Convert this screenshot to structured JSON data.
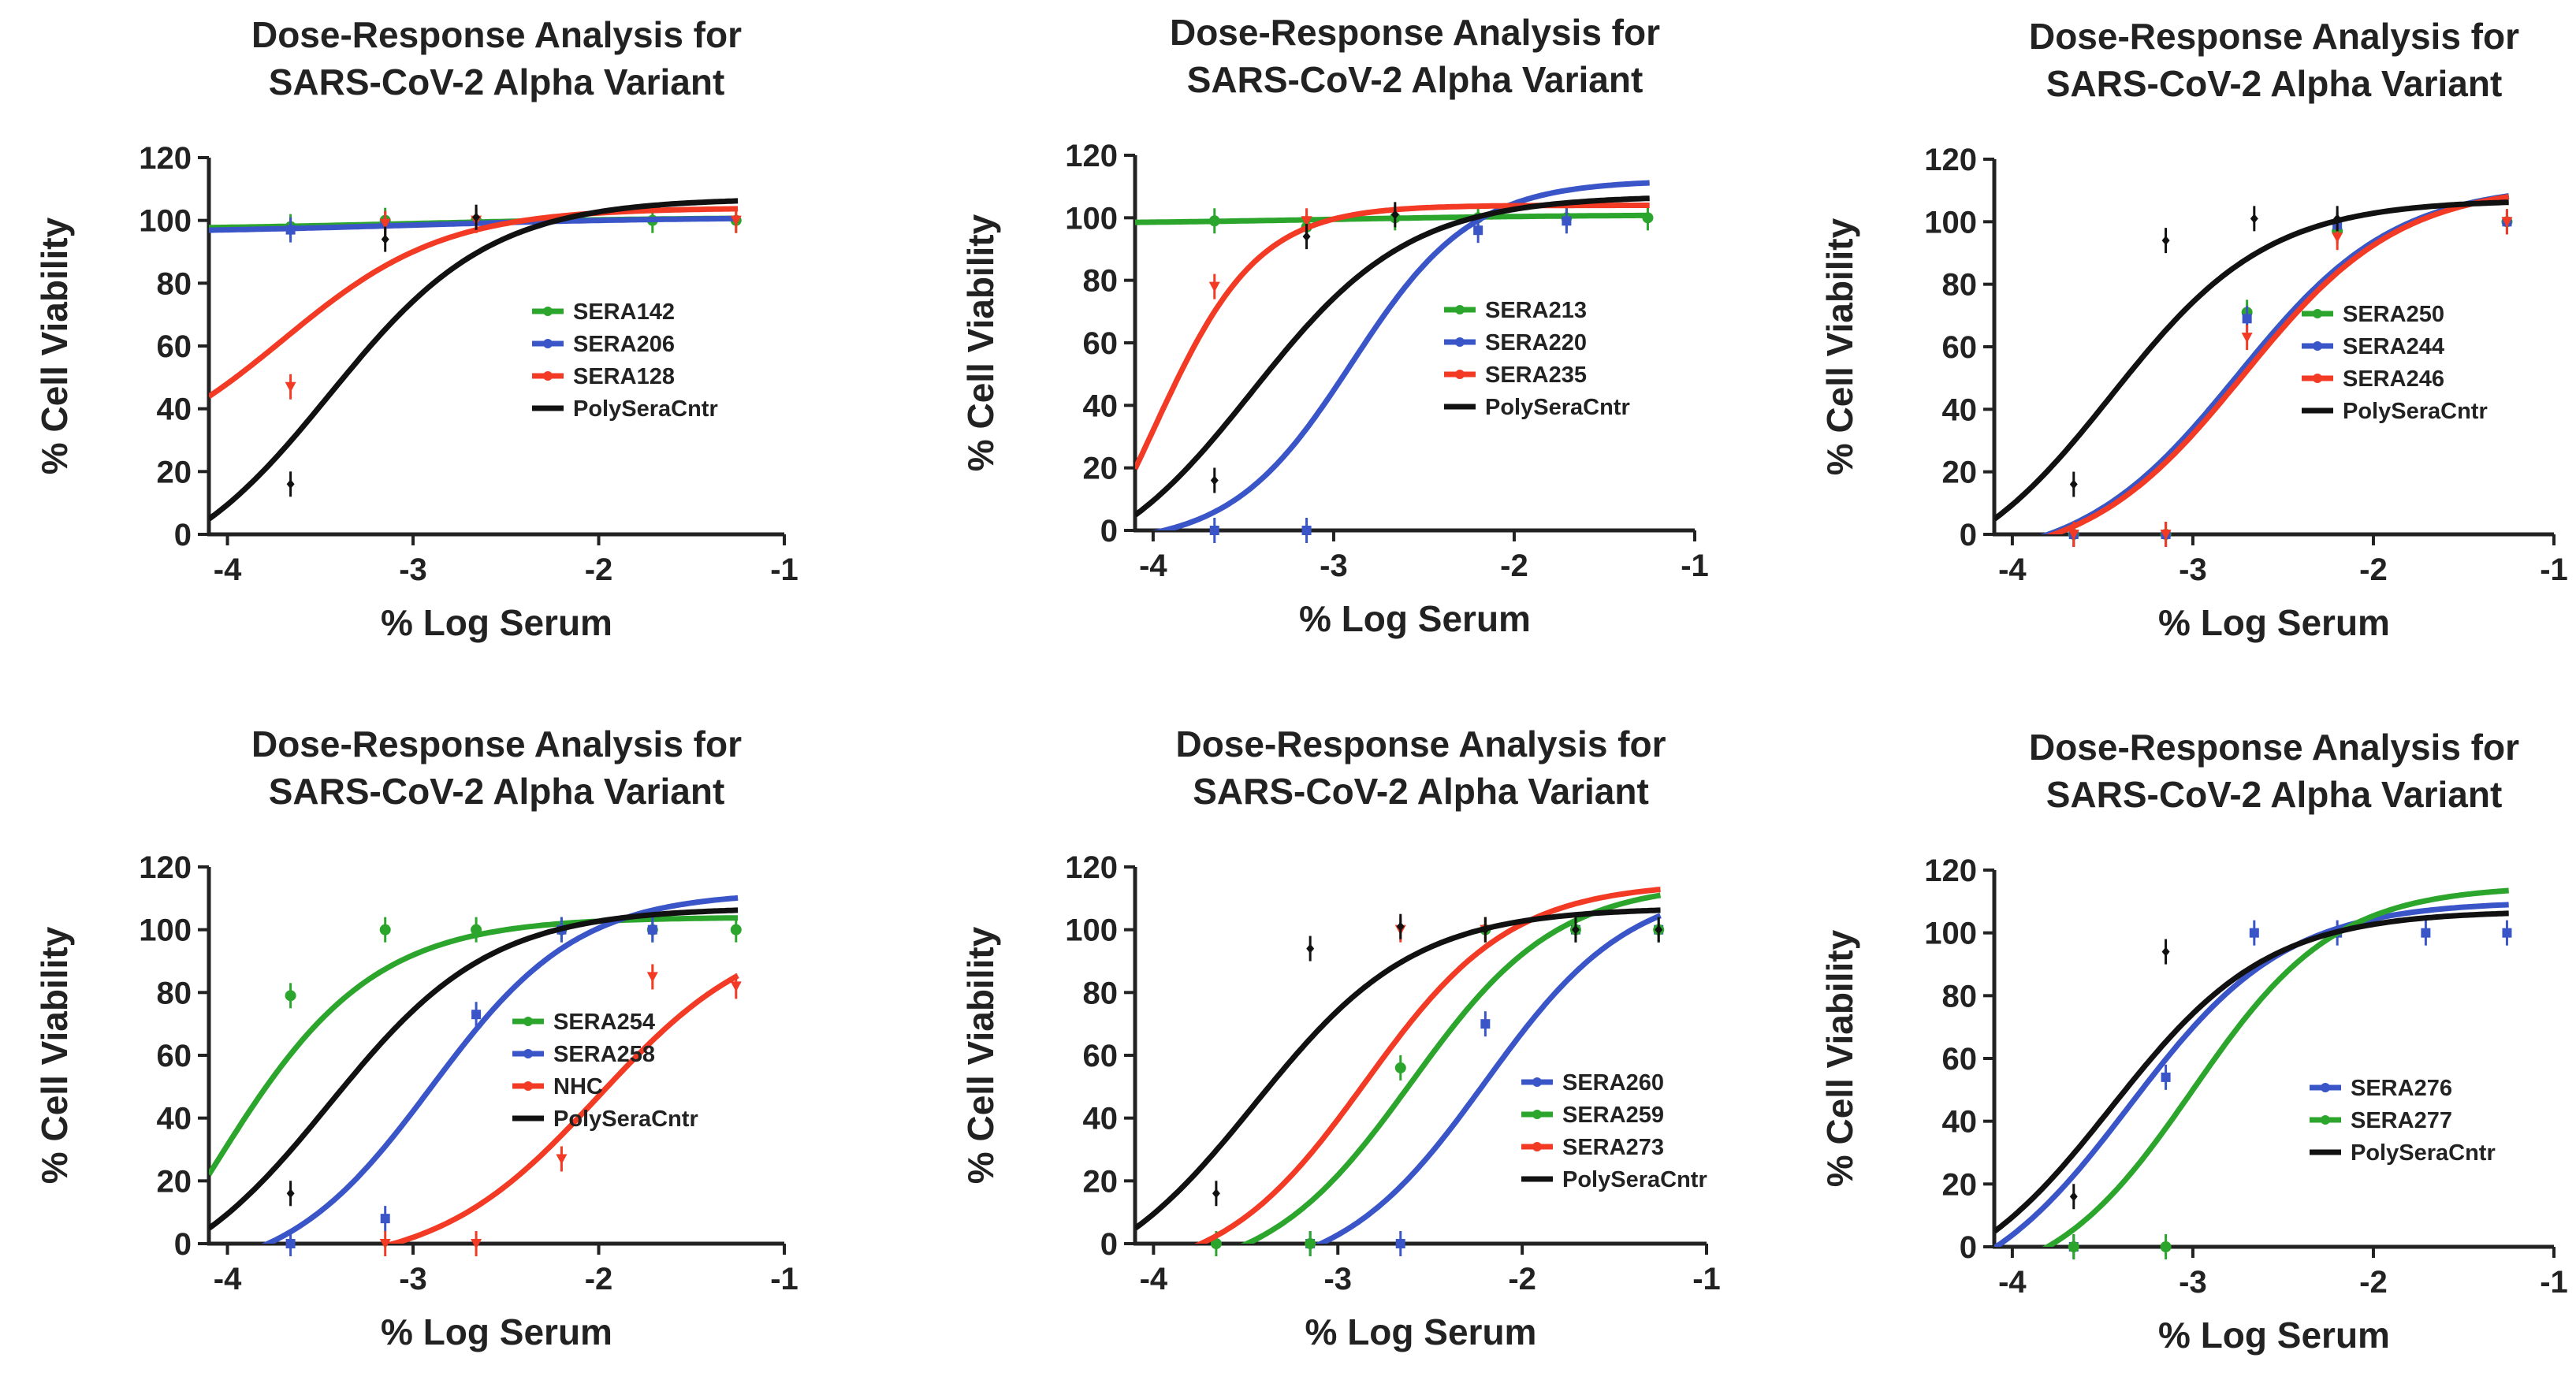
{
  "figure": {
    "colors": {
      "green": "#2ca52c",
      "blue": "#3a55c8",
      "red": "#f23a24",
      "black": "#111111"
    },
    "panels_layout": "2 rows x 3 columns"
  },
  "chart_data": [
    {
      "type": "line",
      "title": [
        "Dose-Response Analysis for",
        "SARS-CoV-2 Alpha Variant"
      ],
      "xlabel": "% Log Serum",
      "ylabel": "% Cell Viability",
      "xlim": [
        -4.1,
        -1
      ],
      "ylim": [
        0,
        120
      ],
      "xticks": [
        -4,
        -3,
        -2,
        -1
      ],
      "yticks": [
        0,
        20,
        40,
        60,
        80,
        100,
        120
      ],
      "legend_position": "center-right",
      "series": [
        {
          "name": "SERA142",
          "color": "#2ca52c",
          "marker": "circle",
          "bottom": 97,
          "top": 101,
          "ec50": -3.0,
          "hill": 0.6,
          "x": [
            -3.66,
            -3.15,
            -2.66,
            -1.71,
            -1.26
          ],
          "y": [
            98,
            100,
            100,
            100,
            100
          ]
        },
        {
          "name": "SERA206",
          "color": "#3a55c8",
          "marker": "square",
          "bottom": 96,
          "top": 101,
          "ec50": -3.0,
          "hill": 0.6,
          "x": [
            -3.66,
            -3.15
          ],
          "y": [
            97,
            99
          ]
        },
        {
          "name": "SERA128",
          "color": "#f23a24",
          "marker": "triangle",
          "bottom": 20,
          "top": 104,
          "ec50": -3.7,
          "hill": 1.0,
          "x": [
            -3.66,
            -3.15,
            -2.66,
            -1.26
          ],
          "y": [
            47,
            99,
            100,
            100
          ]
        },
        {
          "name": "PolySeraCntr",
          "color": "#111111",
          "marker": "diamond",
          "bottom": -18,
          "top": 107,
          "ec50": -3.45,
          "hill": 1.0,
          "x": [
            -3.66,
            -3.15,
            -2.66
          ],
          "y": [
            16,
            94,
            101
          ]
        }
      ]
    },
    {
      "type": "line",
      "title": [
        "Dose-Response Analysis for",
        "SARS-CoV-2 Alpha Variant"
      ],
      "xlabel": "% Log Serum",
      "ylabel": "% Cell Viability",
      "xlim": [
        -4.1,
        -1
      ],
      "ylim": [
        0,
        120
      ],
      "xticks": [
        -4,
        -3,
        -2,
        -1
      ],
      "yticks": [
        0,
        20,
        40,
        60,
        80,
        100,
        120
      ],
      "legend_position": "center-right",
      "series": [
        {
          "name": "SERA213",
          "color": "#2ca52c",
          "marker": "circle",
          "bottom": 98,
          "top": 101,
          "ec50": -3.0,
          "hill": 0.6,
          "x": [
            -3.66,
            -3.15,
            -2.66,
            -2.2,
            -1.71,
            -1.26
          ],
          "y": [
            99,
            97,
            100,
            100,
            100,
            100
          ]
        },
        {
          "name": "SERA220",
          "color": "#3a55c8",
          "marker": "square",
          "bottom": -5,
          "top": 112,
          "ec50": -2.9,
          "hill": 1.3,
          "x": [
            -3.66,
            -3.15,
            -2.2,
            -1.71
          ],
          "y": [
            0,
            0,
            96,
            99
          ]
        },
        {
          "name": "SERA235",
          "color": "#f23a24",
          "marker": "triangle",
          "bottom": -40,
          "top": 104,
          "ec50": -4.0,
          "hill": 1.5,
          "x": [
            -3.66,
            -3.15
          ],
          "y": [
            78,
            99
          ]
        },
        {
          "name": "PolySeraCntr",
          "color": "#111111",
          "marker": "diamond",
          "bottom": -18,
          "top": 107,
          "ec50": -3.45,
          "hill": 1.0,
          "x": [
            -3.66,
            -3.15,
            -2.66
          ],
          "y": [
            16,
            94,
            101
          ]
        }
      ]
    },
    {
      "type": "line",
      "title": [
        "Dose-Response Analysis for",
        "SARS-CoV-2 Alpha Variant"
      ],
      "xlabel": "% Log Serum",
      "ylabel": "% Cell Viability",
      "xlim": [
        -4.1,
        -1
      ],
      "ylim": [
        0,
        120
      ],
      "xticks": [
        -4,
        -3,
        -2,
        -1
      ],
      "yticks": [
        0,
        20,
        40,
        60,
        80,
        100,
        120
      ],
      "legend_position": "center-right",
      "series": [
        {
          "name": "SERA250",
          "color": "#2ca52c",
          "marker": "circle",
          "bottom": -10,
          "top": 112,
          "ec50": -2.75,
          "hill": 1.0,
          "x": [
            -3.66,
            -3.15,
            -2.7,
            -2.2,
            -1.26
          ],
          "y": [
            0,
            0,
            71,
            97,
            100
          ]
        },
        {
          "name": "SERA244",
          "color": "#3a55c8",
          "marker": "square",
          "bottom": -10,
          "top": 112,
          "ec50": -2.75,
          "hill": 1.0,
          "x": [
            -3.66,
            -3.15,
            -2.7,
            -2.2,
            -1.26
          ],
          "y": [
            0,
            0,
            69,
            99,
            100
          ]
        },
        {
          "name": "SERA246",
          "color": "#f23a24",
          "marker": "triangle",
          "bottom": -10,
          "top": 112,
          "ec50": -2.72,
          "hill": 1.0,
          "x": [
            -3.66,
            -3.15,
            -2.7,
            -2.2,
            -1.26
          ],
          "y": [
            0,
            0,
            63,
            95,
            100
          ]
        },
        {
          "name": "PolySeraCntr",
          "color": "#111111",
          "marker": "diamond",
          "bottom": -18,
          "top": 107,
          "ec50": -3.45,
          "hill": 1.0,
          "x": [
            -3.66,
            -3.15,
            -2.66,
            -2.2
          ],
          "y": [
            16,
            94,
            101,
            101
          ]
        }
      ]
    },
    {
      "type": "line",
      "title": [
        "Dose-Response Analysis for",
        "SARS-CoV-2 Alpha Variant"
      ],
      "xlabel": "% Log Serum",
      "ylabel": "% Cell Viability",
      "xlim": [
        -4.1,
        -1
      ],
      "ylim": [
        0,
        120
      ],
      "xticks": [
        -4,
        -3,
        -2,
        -1
      ],
      "yticks": [
        0,
        20,
        40,
        60,
        80,
        100,
        120
      ],
      "legend_position": "center-right",
      "series": [
        {
          "name": "SERA254",
          "color": "#2ca52c",
          "marker": "circle",
          "bottom": -60,
          "top": 104,
          "ec50": -4.1,
          "hill": 1.0,
          "x": [
            -3.66,
            -3.15,
            -2.66,
            -2.2,
            -1.71,
            -1.26
          ],
          "y": [
            79,
            100,
            100,
            100,
            100,
            100
          ]
        },
        {
          "name": "SERA258",
          "color": "#3a55c8",
          "marker": "square",
          "bottom": -12,
          "top": 112,
          "ec50": -2.9,
          "hill": 1.1,
          "x": [
            -3.66,
            -3.15,
            -2.66,
            -2.2,
            -1.71
          ],
          "y": [
            0,
            8,
            73,
            100,
            100
          ]
        },
        {
          "name": "NHC",
          "color": "#f23a24",
          "marker": "triangle",
          "bottom": -8,
          "top": 102,
          "ec50": -2.0,
          "hill": 1.0,
          "x": [
            -3.15,
            -2.66,
            -2.2,
            -1.71,
            -1.26
          ],
          "y": [
            0,
            0,
            27,
            85,
            82
          ]
        },
        {
          "name": "PolySeraCntr",
          "color": "#111111",
          "marker": "diamond",
          "bottom": -18,
          "top": 107,
          "ec50": -3.45,
          "hill": 1.0,
          "x": [
            -3.66
          ],
          "y": [
            16
          ]
        }
      ]
    },
    {
      "type": "line",
      "title": [
        "Dose-Response Analysis for",
        "SARS-CoV-2 Alpha Variant"
      ],
      "xlabel": "% Log Serum",
      "ylabel": "% Cell Viability",
      "xlim": [
        -4.1,
        -1
      ],
      "ylim": [
        0,
        120
      ],
      "xticks": [
        -4,
        -3,
        -2,
        -1
      ],
      "yticks": [
        0,
        20,
        40,
        60,
        80,
        100,
        120
      ],
      "legend_position": "lower-right",
      "series": [
        {
          "name": "SERA260",
          "color": "#3a55c8",
          "marker": "square",
          "bottom": -12,
          "top": 115,
          "ec50": -2.2,
          "hill": 1.1,
          "x": [
            -3.15,
            -2.66,
            -2.2,
            -1.71,
            -1.26
          ],
          "y": [
            0,
            0,
            70,
            100,
            100
          ]
        },
        {
          "name": "SERA259",
          "color": "#2ca52c",
          "marker": "circle",
          "bottom": -12,
          "top": 115,
          "ec50": -2.6,
          "hill": 1.1,
          "x": [
            -3.66,
            -3.15,
            -2.66,
            -2.2,
            -1.71,
            -1.26
          ],
          "y": [
            0,
            0,
            56,
            100,
            100,
            100
          ]
        },
        {
          "name": "SERA273",
          "color": "#f23a24",
          "marker": "triangle",
          "bottom": -12,
          "top": 115,
          "ec50": -2.85,
          "hill": 1.1,
          "x": [
            -2.66,
            -2.2
          ],
          "y": [
            100,
            100
          ]
        },
        {
          "name": "PolySeraCntr",
          "color": "#111111",
          "marker": "diamond",
          "bottom": -18,
          "top": 107,
          "ec50": -3.45,
          "hill": 1.0,
          "x": [
            -3.66,
            -3.15,
            -2.66,
            -2.2,
            -1.71,
            -1.26
          ],
          "y": [
            16,
            94,
            101,
            100,
            100,
            100
          ]
        }
      ]
    },
    {
      "type": "line",
      "title": [
        "Dose-Response Analysis for",
        "SARS-CoV-2 Alpha Variant"
      ],
      "xlabel": "% Log Serum",
      "ylabel": "% Cell Viability",
      "xlim": [
        -4.1,
        -1
      ],
      "ylim": [
        0,
        120
      ],
      "xticks": [
        -4,
        -3,
        -2,
        -1
      ],
      "yticks": [
        0,
        20,
        40,
        60,
        80,
        100,
        120
      ],
      "legend_position": "lower-right",
      "series": [
        {
          "name": "SERA276",
          "color": "#3a55c8",
          "marker": "square",
          "bottom": -20,
          "top": 110,
          "ec50": -3.35,
          "hill": 1.0,
          "x": [
            -3.66,
            -3.15,
            -2.66,
            -2.2,
            -1.71,
            -1.26
          ],
          "y": [
            0,
            54,
            100,
            100,
            100,
            100
          ]
        },
        {
          "name": "SERA277",
          "color": "#2ca52c",
          "marker": "circle",
          "bottom": -15,
          "top": 115,
          "ec50": -3.0,
          "hill": 1.1,
          "x": [
            -3.66,
            -3.15
          ],
          "y": [
            0,
            0
          ]
        },
        {
          "name": "PolySeraCntr",
          "color": "#111111",
          "marker": "diamond",
          "bottom": -18,
          "top": 107,
          "ec50": -3.45,
          "hill": 1.0,
          "x": [
            -3.66,
            -3.15
          ],
          "y": [
            16,
            94
          ]
        }
      ]
    }
  ]
}
